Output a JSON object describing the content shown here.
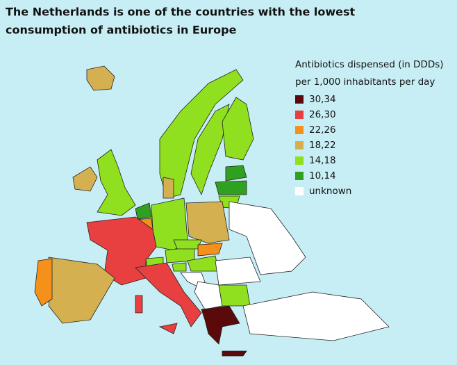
{
  "title": [
    "The Netherlands is one of the countries with the lowest",
    "consumption of antibiotics in Europe"
  ],
  "legend": {
    "title": [
      "Antibiotics dispensed (in DDDs)",
      "per 1,000 inhabitants per day"
    ],
    "items": [
      {
        "label": "30,34",
        "color": "#5a0a0a"
      },
      {
        "label": "26,30",
        "color": "#e84040"
      },
      {
        "label": "22,26",
        "color": "#f5901a"
      },
      {
        "label": "18,22",
        "color": "#d4b050"
      },
      {
        "label": "14,18",
        "color": "#90e020"
      },
      {
        "label": "10,14",
        "color": "#30a020"
      },
      {
        "label": "unknown",
        "color": "#ffffff"
      }
    ]
  }
}
